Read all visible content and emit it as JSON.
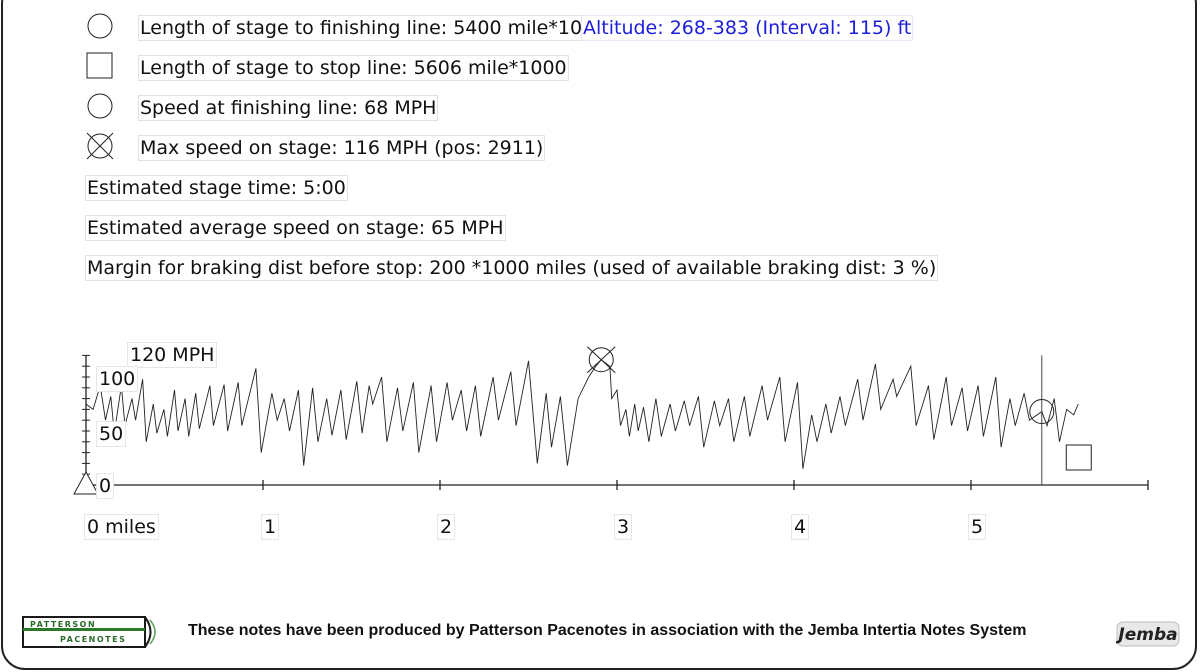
{
  "info": {
    "finish_length": "Length of stage to finishing line: 5400 mile*1000",
    "altitude": "Altitude: 268-383 (Interval: 115) ft",
    "stop_length": "Length of stage to stop line: 5606 mile*1000",
    "finish_speed": "Speed at finishing line: 68 MPH",
    "max_speed": "Max speed on stage: 116 MPH (pos: 2911)",
    "stage_time": "Estimated stage time: 5:00",
    "avg_speed": "Estimated average speed on stage: 65 MPH",
    "braking_margin": "Margin for braking dist before stop: 200 *1000 miles (used of available braking dist: 3 %)"
  },
  "footer": {
    "text": "These notes have been produced by Patterson Pacenotes in association with the Jemba Intertia Notes System",
    "logo_left_line1": "PATTERSON",
    "logo_left_line2": "PACENOTES",
    "logo_right": "Jemba"
  },
  "chart_data": {
    "type": "line",
    "y_top_label": "120 MPH",
    "y_ticks": [
      "100",
      "50",
      "0"
    ],
    "x_ticks": [
      "0 miles",
      "1",
      "2",
      "3",
      "4",
      "5"
    ],
    "ylim": [
      0,
      120
    ],
    "xlim": [
      0,
      6
    ],
    "markers": {
      "finish_x": 5.4,
      "finish_speed": 68,
      "stop_x": 5.606,
      "max_x": 2.911,
      "max_speed": 116
    },
    "series": [
      {
        "values": [
          [
            0.0,
            75
          ],
          [
            0.04,
            70
          ],
          [
            0.08,
            92
          ],
          [
            0.11,
            60
          ],
          [
            0.14,
            82
          ],
          [
            0.16,
            48
          ],
          [
            0.2,
            92
          ],
          [
            0.22,
            55
          ],
          [
            0.26,
            80
          ],
          [
            0.28,
            60
          ],
          [
            0.32,
            98
          ],
          [
            0.34,
            40
          ],
          [
            0.38,
            75
          ],
          [
            0.4,
            48
          ],
          [
            0.44,
            70
          ],
          [
            0.46,
            45
          ],
          [
            0.5,
            88
          ],
          [
            0.52,
            50
          ],
          [
            0.56,
            80
          ],
          [
            0.58,
            45
          ],
          [
            0.62,
            85
          ],
          [
            0.64,
            52
          ],
          [
            0.7,
            92
          ],
          [
            0.72,
            55
          ],
          [
            0.78,
            93
          ],
          [
            0.8,
            50
          ],
          [
            0.86,
            95
          ],
          [
            0.88,
            55
          ],
          [
            0.96,
            108
          ],
          [
            0.99,
            30
          ],
          [
            1.05,
            85
          ],
          [
            1.08,
            60
          ],
          [
            1.12,
            80
          ],
          [
            1.15,
            50
          ],
          [
            1.2,
            88
          ],
          [
            1.23,
            18
          ],
          [
            1.28,
            90
          ],
          [
            1.31,
            40
          ],
          [
            1.36,
            80
          ],
          [
            1.39,
            46
          ],
          [
            1.44,
            88
          ],
          [
            1.47,
            42
          ],
          [
            1.53,
            96
          ],
          [
            1.56,
            48
          ],
          [
            1.6,
            92
          ],
          [
            1.62,
            75
          ],
          [
            1.67,
            100
          ],
          [
            1.7,
            40
          ],
          [
            1.76,
            90
          ],
          [
            1.79,
            50
          ],
          [
            1.85,
            95
          ],
          [
            1.88,
            30
          ],
          [
            1.95,
            92
          ],
          [
            1.98,
            40
          ],
          [
            2.04,
            95
          ],
          [
            2.07,
            60
          ],
          [
            2.12,
            88
          ],
          [
            2.15,
            50
          ],
          [
            2.2,
            92
          ],
          [
            2.23,
            45
          ],
          [
            2.3,
            100
          ],
          [
            2.33,
            60
          ],
          [
            2.4,
            105
          ],
          [
            2.43,
            55
          ],
          [
            2.5,
            115
          ],
          [
            2.55,
            20
          ],
          [
            2.6,
            85
          ],
          [
            2.63,
            35
          ],
          [
            2.68,
            82
          ],
          [
            2.72,
            18
          ],
          [
            2.78,
            80
          ],
          [
            2.84,
            100
          ],
          [
            2.88,
            110
          ],
          [
            2.911,
            116
          ],
          [
            2.96,
            110
          ],
          [
            2.97,
            80
          ],
          [
            3.0,
            88
          ],
          [
            3.02,
            55
          ],
          [
            3.05,
            70
          ],
          [
            3.07,
            45
          ],
          [
            3.1,
            75
          ],
          [
            3.12,
            50
          ],
          [
            3.15,
            72
          ],
          [
            3.18,
            40
          ],
          [
            3.22,
            80
          ],
          [
            3.25,
            45
          ],
          [
            3.3,
            75
          ],
          [
            3.33,
            50
          ],
          [
            3.38,
            78
          ],
          [
            3.41,
            55
          ],
          [
            3.46,
            82
          ],
          [
            3.49,
            35
          ],
          [
            3.55,
            78
          ],
          [
            3.58,
            55
          ],
          [
            3.63,
            80
          ],
          [
            3.66,
            40
          ],
          [
            3.72,
            82
          ],
          [
            3.75,
            45
          ],
          [
            3.82,
            92
          ],
          [
            3.85,
            60
          ],
          [
            3.92,
            100
          ],
          [
            3.95,
            40
          ],
          [
            4.02,
            95
          ],
          [
            4.05,
            15
          ],
          [
            4.1,
            65
          ],
          [
            4.13,
            40
          ],
          [
            4.18,
            75
          ],
          [
            4.21,
            48
          ],
          [
            4.26,
            82
          ],
          [
            4.29,
            55
          ],
          [
            4.36,
            98
          ],
          [
            4.39,
            60
          ],
          [
            4.46,
            112
          ],
          [
            4.49,
            70
          ],
          [
            4.56,
            98
          ],
          [
            4.58,
            82
          ],
          [
            4.66,
            110
          ],
          [
            4.69,
            55
          ],
          [
            4.76,
            92
          ],
          [
            4.79,
            42
          ],
          [
            4.86,
            100
          ],
          [
            4.89,
            55
          ],
          [
            4.95,
            90
          ],
          [
            4.98,
            50
          ],
          [
            5.04,
            92
          ],
          [
            5.07,
            45
          ],
          [
            5.14,
            100
          ],
          [
            5.17,
            35
          ],
          [
            5.22,
            80
          ],
          [
            5.25,
            55
          ],
          [
            5.3,
            85
          ],
          [
            5.33,
            60
          ],
          [
            5.4,
            68
          ],
          [
            5.43,
            55
          ],
          [
            5.47,
            80
          ],
          [
            5.5,
            40
          ],
          [
            5.54,
            70
          ],
          [
            5.58,
            65
          ],
          [
            5.606,
            75
          ]
        ]
      }
    ]
  }
}
